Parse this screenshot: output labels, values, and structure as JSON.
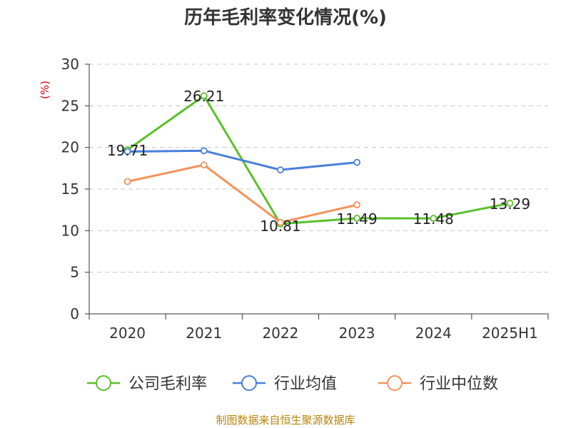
{
  "chart_data": {
    "type": "line",
    "title": "历年毛利率变化情况(%)",
    "ylabel": "(%)",
    "categories": [
      "2020",
      "2021",
      "2022",
      "2023",
      "2024",
      "2025H1"
    ],
    "ylim": [
      0,
      30
    ],
    "yticks": [
      0,
      5,
      10,
      15,
      20,
      25,
      30
    ],
    "grid": true,
    "legend_position": "bottom",
    "series": [
      {
        "name": "公司毛利率",
        "color": "#5ac02a",
        "values": [
          19.71,
          26.21,
          10.81,
          11.49,
          11.48,
          13.29
        ],
        "labels": [
          "19.71",
          "26.21",
          "10.81",
          "11.49",
          "11.48",
          "13.29"
        ]
      },
      {
        "name": "行业均值",
        "color": "#4a7fdc",
        "values": [
          19.5,
          19.6,
          17.3,
          18.2,
          null,
          null
        ]
      },
      {
        "name": "行业中位数",
        "color": "#f4925a",
        "values": [
          15.9,
          17.9,
          11.0,
          13.1,
          null,
          null
        ]
      }
    ],
    "source": "制图数据来自恒生聚源数据库"
  }
}
